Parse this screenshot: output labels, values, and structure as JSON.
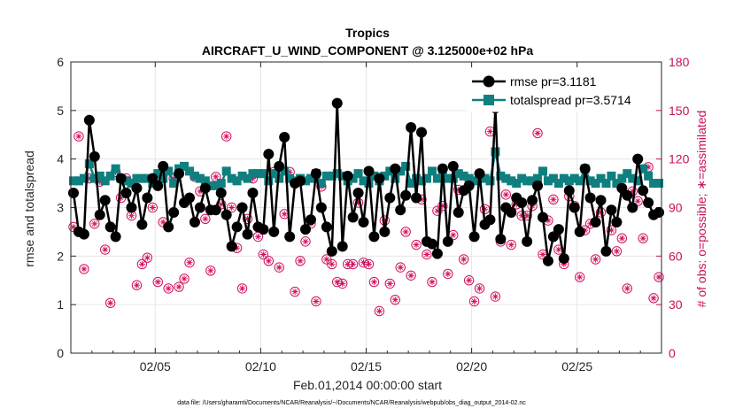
{
  "chart_data": {
    "type": "line",
    "title": "Tropics",
    "subtitle": "AIRCRAFT_U_WIND_COMPONENT @ 3.125000e+02 hPa",
    "xlabel": "Feb.01,2014 00:00:00 start",
    "ylabel": "rmse and totalspread",
    "y2label": "# of obs: o=possible; ∗=assimilated",
    "footnote": "data file: /Users/gharamti/Documents/NCAR/Reanalysis/~/Documents/NCAR/Reanalysis/webpub/obs_diag_output_2014-02.nc",
    "xlim": [
      1,
      29
    ],
    "ylim": [
      0,
      6
    ],
    "y2lim": [
      0,
      180
    ],
    "x_ticks": [
      5,
      10,
      15,
      20,
      25
    ],
    "x_tick_labels": [
      "02/05",
      "02/10",
      "02/15",
      "02/20",
      "02/25"
    ],
    "y_ticks": [
      0,
      1,
      2,
      3,
      4,
      5,
      6
    ],
    "y_tick_labels": [
      "0",
      "1",
      "2",
      "3",
      "4",
      "5",
      "6"
    ],
    "y2_ticks": [
      0,
      30,
      60,
      90,
      120,
      150,
      180
    ],
    "y2_tick_labels": [
      "0",
      "30",
      "60",
      "90",
      "120",
      "150",
      "180"
    ],
    "legend": {
      "position": "top-right",
      "entries": [
        "rmse pr=3.1181",
        "totalspread pr=3.5714"
      ]
    },
    "colors": {
      "rmse": "#000000",
      "totalspread": "#0f7f7f",
      "obs": "#d1105f",
      "grid": "#e6e6e6"
    },
    "series": [
      {
        "name": "rmse",
        "axis": "left",
        "x": [
          1.125,
          1.375,
          1.625,
          1.875,
          2.125,
          2.375,
          2.625,
          2.875,
          3.125,
          3.375,
          3.625,
          3.875,
          4.125,
          4.375,
          4.625,
          4.875,
          5.125,
          5.375,
          5.625,
          5.875,
          6.125,
          6.375,
          6.625,
          6.875,
          7.125,
          7.375,
          7.625,
          7.875,
          8.125,
          8.375,
          8.625,
          8.875,
          9.125,
          9.375,
          9.625,
          9.875,
          10.125,
          10.375,
          10.625,
          10.875,
          11.125,
          11.375,
          11.625,
          11.875,
          12.125,
          12.375,
          12.625,
          12.875,
          13.125,
          13.375,
          13.625,
          13.875,
          14.125,
          14.375,
          14.625,
          14.875,
          15.125,
          15.375,
          15.625,
          15.875,
          16.125,
          16.375,
          16.625,
          16.875,
          17.125,
          17.375,
          17.625,
          17.875,
          18.125,
          18.375,
          18.625,
          18.875,
          19.125,
          19.375,
          19.625,
          19.875,
          20.125,
          20.375,
          20.625,
          20.875,
          21.125,
          21.375,
          21.625,
          21.875,
          22.125,
          22.375,
          22.625,
          22.875,
          23.125,
          23.375,
          23.625,
          23.875,
          24.125,
          24.375,
          24.625,
          24.875,
          25.125,
          25.375,
          25.625,
          25.875,
          26.125,
          26.375,
          26.625,
          26.875,
          27.125,
          27.375,
          27.625,
          27.875,
          28.125,
          28.375,
          28.625,
          28.875
        ],
        "values": [
          3.3,
          2.5,
          2.45,
          4.8,
          4.05,
          2.85,
          3.15,
          2.6,
          2.4,
          3.6,
          3.3,
          3.0,
          3.4,
          2.65,
          3.2,
          3.6,
          3.45,
          3.85,
          2.6,
          2.9,
          3.7,
          3.1,
          3.2,
          2.7,
          3.0,
          3.4,
          2.95,
          2.95,
          3.3,
          2.85,
          2.2,
          2.6,
          3.0,
          2.45,
          3.3,
          2.6,
          2.55,
          4.1,
          2.5,
          3.85,
          4.45,
          2.4,
          3.5,
          3.55,
          2.55,
          2.75,
          3.7,
          3.0,
          2.6,
          2.1,
          5.15,
          2.2,
          3.65,
          2.8,
          3.3,
          2.7,
          3.75,
          2.4,
          3.6,
          2.5,
          3.2,
          3.8,
          2.95,
          3.25,
          4.65,
          3.2,
          4.55,
          2.3,
          2.25,
          2.05,
          3.8,
          2.3,
          3.85,
          2.9,
          3.35,
          3.45,
          2.4,
          3.7,
          2.65,
          2.75,
          5.05,
          2.35,
          3.0,
          2.9,
          3.2,
          3.1,
          2.3,
          3.15,
          3.45,
          2.8,
          1.9,
          2.4,
          2.55,
          1.95,
          3.35,
          3.0,
          2.5,
          3.8,
          3.2,
          2.7,
          3.15,
          2.1,
          2.95,
          2.7,
          3.4,
          3.25,
          3.0,
          4.0,
          3.35,
          3.1,
          2.85,
          2.9
        ]
      },
      {
        "name": "totalspread",
        "axis": "left",
        "x": [
          1.125,
          1.375,
          1.625,
          1.875,
          2.125,
          2.375,
          2.625,
          2.875,
          3.125,
          3.375,
          3.625,
          3.875,
          4.125,
          4.375,
          4.625,
          4.875,
          5.125,
          5.375,
          5.625,
          5.875,
          6.125,
          6.375,
          6.625,
          6.875,
          7.125,
          7.375,
          7.625,
          7.875,
          8.125,
          8.375,
          8.625,
          8.875,
          9.125,
          9.375,
          9.625,
          9.875,
          10.125,
          10.375,
          10.625,
          10.875,
          11.125,
          11.375,
          11.625,
          11.875,
          12.125,
          12.375,
          12.625,
          12.875,
          13.125,
          13.375,
          13.625,
          13.875,
          14.125,
          14.375,
          14.625,
          14.875,
          15.125,
          15.375,
          15.625,
          15.875,
          16.125,
          16.375,
          16.625,
          16.875,
          17.125,
          17.375,
          17.625,
          17.875,
          18.125,
          18.375,
          18.625,
          18.875,
          19.125,
          19.375,
          19.625,
          19.875,
          20.125,
          20.375,
          20.625,
          20.875,
          21.125,
          21.375,
          21.625,
          21.875,
          22.125,
          22.375,
          22.625,
          22.875,
          23.125,
          23.375,
          23.625,
          23.875,
          24.125,
          24.375,
          24.625,
          24.875,
          25.125,
          25.375,
          25.625,
          25.875,
          26.125,
          26.375,
          26.625,
          26.875,
          27.125,
          27.375,
          27.625,
          27.875,
          28.125,
          28.375,
          28.625,
          28.875
        ],
        "values": [
          3.55,
          3.55,
          3.6,
          3.9,
          3.6,
          3.65,
          3.55,
          3.65,
          3.8,
          3.6,
          3.55,
          3.5,
          3.6,
          3.6,
          3.6,
          3.5,
          3.7,
          3.6,
          3.75,
          3.5,
          3.8,
          3.85,
          3.75,
          3.65,
          3.6,
          3.55,
          3.45,
          3.45,
          3.5,
          3.75,
          3.6,
          3.55,
          3.65,
          3.6,
          3.7,
          3.7,
          3.7,
          3.55,
          3.7,
          3.6,
          3.75,
          3.6,
          3.55,
          3.6,
          3.55,
          3.6,
          3.7,
          3.5,
          3.65,
          3.65,
          3.7,
          3.65,
          3.55,
          3.6,
          3.7,
          3.55,
          3.5,
          3.65,
          3.55,
          3.65,
          3.75,
          3.6,
          3.75,
          3.85,
          3.5,
          3.6,
          3.55,
          3.6,
          3.75,
          3.6,
          3.75,
          3.6,
          3.6,
          3.7,
          3.65,
          3.6,
          3.55,
          3.65,
          3.6,
          3.55,
          4.15,
          3.65,
          3.6,
          3.55,
          3.5,
          3.6,
          3.55,
          3.55,
          3.6,
          3.75,
          3.55,
          3.6,
          3.5,
          3.6,
          3.55,
          3.6,
          3.55,
          3.8,
          3.55,
          3.5,
          3.6,
          3.5,
          3.65,
          3.5,
          3.6,
          3.7,
          3.6,
          3.55,
          3.8,
          3.65,
          3.5,
          3.5
        ]
      },
      {
        "name": "obs possible",
        "axis": "right",
        "marker": "circle",
        "x": [
          1.125,
          1.375,
          1.625,
          1.875,
          2.125,
          2.375,
          2.625,
          2.875,
          3.125,
          3.375,
          3.625,
          3.875,
          4.125,
          4.375,
          4.625,
          4.875,
          5.125,
          5.375,
          5.625,
          5.875,
          6.125,
          6.375,
          6.625,
          6.875,
          7.125,
          7.375,
          7.625,
          7.875,
          8.125,
          8.375,
          8.625,
          8.875,
          9.125,
          9.375,
          9.625,
          9.875,
          10.125,
          10.375,
          10.625,
          10.875,
          11.125,
          11.375,
          11.625,
          11.875,
          12.125,
          12.375,
          12.625,
          12.875,
          13.125,
          13.375,
          13.625,
          13.875,
          14.125,
          14.375,
          14.625,
          14.875,
          15.125,
          15.375,
          15.625,
          15.875,
          16.125,
          16.375,
          16.625,
          16.875,
          17.125,
          17.375,
          17.625,
          17.875,
          18.125,
          18.375,
          18.625,
          18.875,
          19.125,
          19.375,
          19.625,
          19.875,
          20.125,
          20.375,
          20.625,
          20.875,
          21.125,
          21.375,
          21.625,
          21.875,
          22.125,
          22.375,
          22.625,
          22.875,
          23.125,
          23.375,
          23.625,
          23.875,
          24.125,
          24.375,
          24.625,
          24.875,
          25.125,
          25.375,
          25.625,
          25.875,
          26.125,
          26.375,
          26.625,
          26.875,
          27.125,
          27.375,
          27.625,
          27.875,
          28.125,
          28.375,
          28.625,
          28.875
        ],
        "values": [
          78,
          134,
          52,
          108,
          80,
          106,
          64,
          31,
          112,
          96,
          108,
          85,
          42,
          55,
          59,
          90,
          44,
          81,
          40,
          108,
          41,
          46,
          56,
          109,
          100,
          83,
          51,
          109,
          92,
          134,
          90,
          65,
          40,
          83,
          108,
          72,
          61,
          57,
          112,
          53,
          86,
          112,
          38,
          57,
          69,
          80,
          32,
          103,
          58,
          55,
          44,
          43,
          55,
          55,
          93,
          56,
          55,
          44,
          26,
          82,
          43,
          33,
          53,
          75,
          48,
          67,
          95,
          61,
          44,
          88,
          91,
          49,
          73,
          101,
          58,
          45,
          32,
          40,
          89,
          137,
          35,
          69,
          98,
          67,
          92,
          85,
          85,
          91,
          136,
          61,
          82,
          95,
          64,
          55,
          97,
          91,
          47,
          76,
          80,
          58,
          87,
          63,
          76,
          63,
          71,
          40,
          100,
          94,
          71,
          115,
          34,
          47
        ]
      },
      {
        "name": "obs assimilated",
        "axis": "right",
        "marker": "star",
        "x": [
          1.125,
          1.375,
          1.625,
          1.875,
          2.125,
          2.375,
          2.625,
          2.875,
          3.125,
          3.375,
          3.625,
          3.875,
          4.125,
          4.375,
          4.625,
          4.875,
          5.125,
          5.375,
          5.625,
          5.875,
          6.125,
          6.375,
          6.625,
          6.875,
          7.125,
          7.375,
          7.625,
          7.875,
          8.125,
          8.375,
          8.625,
          8.875,
          9.125,
          9.375,
          9.625,
          9.875,
          10.125,
          10.375,
          10.625,
          10.875,
          11.125,
          11.375,
          11.625,
          11.875,
          12.125,
          12.375,
          12.625,
          12.875,
          13.125,
          13.375,
          13.625,
          13.875,
          14.125,
          14.375,
          14.625,
          14.875,
          15.125,
          15.375,
          15.625,
          15.875,
          16.125,
          16.375,
          16.625,
          16.875,
          17.125,
          17.375,
          17.625,
          17.875,
          18.125,
          18.375,
          18.625,
          18.875,
          19.125,
          19.375,
          19.625,
          19.875,
          20.125,
          20.375,
          20.625,
          20.875,
          21.125,
          21.375,
          21.625,
          21.875,
          22.125,
          22.375,
          22.625,
          22.875,
          23.125,
          23.375,
          23.625,
          23.875,
          24.125,
          24.375,
          24.625,
          24.875,
          25.125,
          25.375,
          25.625,
          25.875,
          26.125,
          26.375,
          26.625,
          26.875,
          27.125,
          27.375,
          27.625,
          27.875,
          28.125,
          28.375,
          28.625,
          28.875
        ],
        "values": [
          78,
          134,
          52,
          108,
          80,
          106,
          64,
          31,
          112,
          96,
          108,
          85,
          42,
          55,
          59,
          90,
          44,
          81,
          40,
          108,
          41,
          46,
          56,
          109,
          100,
          83,
          51,
          109,
          92,
          134,
          90,
          65,
          40,
          83,
          108,
          72,
          61,
          57,
          112,
          53,
          86,
          112,
          38,
          57,
          69,
          80,
          32,
          103,
          58,
          55,
          44,
          43,
          55,
          55,
          93,
          56,
          55,
          44,
          26,
          82,
          43,
          33,
          53,
          75,
          48,
          67,
          95,
          61,
          44,
          88,
          91,
          49,
          73,
          101,
          58,
          45,
          32,
          40,
          89,
          137,
          35,
          69,
          98,
          67,
          92,
          85,
          85,
          91,
          136,
          61,
          82,
          95,
          64,
          55,
          97,
          91,
          47,
          76,
          80,
          58,
          87,
          63,
          76,
          63,
          71,
          40,
          100,
          94,
          71,
          115,
          34,
          47
        ]
      }
    ]
  }
}
